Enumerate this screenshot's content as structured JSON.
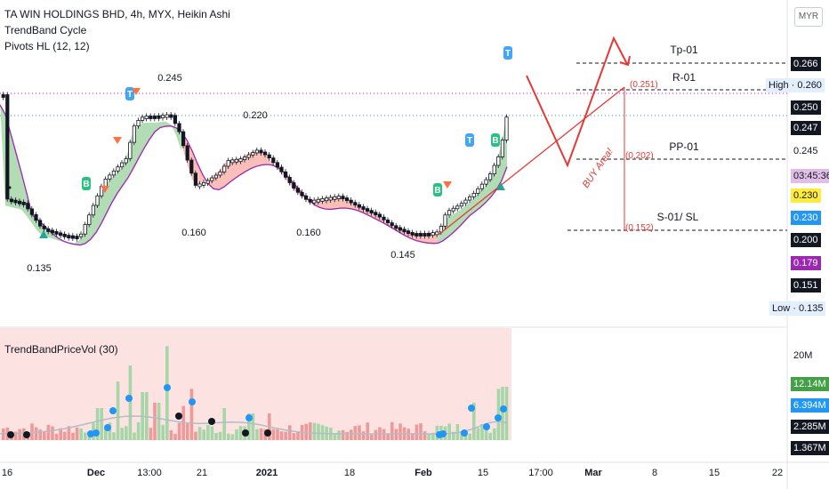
{
  "header": {
    "symbol_line": "TA WIN HOLDINGS BHD, 4h, MYX, Heikin Ashi",
    "indicator1": "TrendBand Cycle",
    "indicator2": "Pivots HL (12, 12)"
  },
  "currency": "MYR",
  "price_scale": [
    {
      "text": "0.266",
      "style": "black"
    },
    {
      "text": "High · 0.260",
      "style": "light"
    },
    {
      "text": "0.250",
      "style": "black"
    },
    {
      "text": "0.247",
      "style": "black"
    },
    {
      "text": "0.245",
      "style": "white"
    },
    {
      "text": "03:45:36",
      "style": "pink"
    },
    {
      "text": "0.230",
      "style": "yellow"
    },
    {
      "text": "0.230",
      "style": "blue"
    },
    {
      "text": "0.200",
      "style": "black"
    },
    {
      "text": "0.179",
      "style": "purple"
    },
    {
      "text": "0.151",
      "style": "black"
    },
    {
      "text": "Low · 0.135",
      "style": "light"
    }
  ],
  "pivot_labels": [
    "0.245",
    "0.220",
    "0.135",
    "0.160",
    "0.160",
    "0.145"
  ],
  "drawing_labels": {
    "tp": "Tp-01",
    "r": "R-01",
    "pp": "PP-01",
    "s": "S-01/ SL",
    "r_val": "(0.251)",
    "pp_val": "(0.202)",
    "s_val": "(0.152)",
    "buy": "BUY Area!"
  },
  "signal_letters": {
    "buy": "B",
    "top": "T"
  },
  "volume": {
    "title": "TrendBandPriceVol (30)",
    "scale": [
      {
        "text": "20M",
        "style": "plain"
      },
      {
        "text": "12.14M",
        "style": "green"
      },
      {
        "text": "6.394M",
        "style": "blue"
      },
      {
        "text": "2.285M",
        "style": "black"
      },
      {
        "text": "1.367M",
        "style": "black"
      }
    ]
  },
  "x_axis": [
    "16",
    "Dec",
    "13:00",
    "21",
    "2021",
    "18",
    "Feb",
    "15",
    "17:00",
    "Mar",
    "8",
    "15",
    "22"
  ],
  "colors": {
    "bull_band": "#a5d6a7",
    "bear_band": "#f8b4ac",
    "ma_line": "#9c27b0",
    "projection": "#e53935",
    "volume_bg": "#fde2e2"
  }
}
